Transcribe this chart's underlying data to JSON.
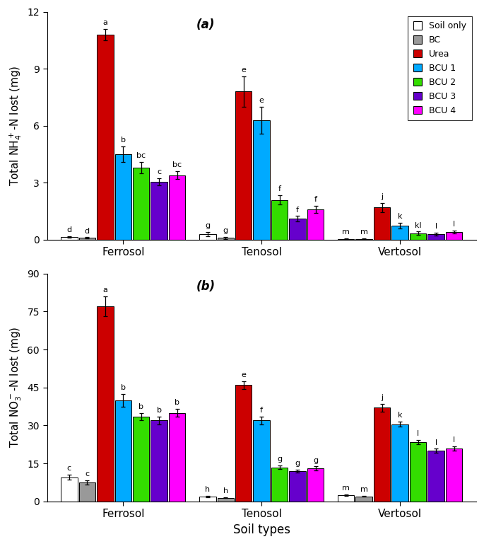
{
  "panel_a": {
    "title": "(a)",
    "ylabel": "Total NH$_4^+$-N lost (mg)",
    "ylim": [
      0,
      12
    ],
    "yticks": [
      0,
      3,
      6,
      9,
      12
    ],
    "groups": [
      "Ferrosol",
      "Tenosol",
      "Vertosol"
    ],
    "treatments": [
      "Soil only",
      "BC",
      "Urea",
      "BCU 1",
      "BCU 2",
      "BCU 3",
      "BCU 4"
    ],
    "values": {
      "Ferrosol": [
        0.15,
        0.1,
        10.8,
        4.5,
        3.8,
        3.05,
        3.4
      ],
      "Tenosol": [
        0.3,
        0.1,
        7.8,
        6.3,
        2.1,
        1.1,
        1.6
      ],
      "Vertosol": [
        0.05,
        0.05,
        1.7,
        0.75,
        0.35,
        0.3,
        0.4
      ]
    },
    "errors": {
      "Ferrosol": [
        0.05,
        0.03,
        0.3,
        0.4,
        0.3,
        0.2,
        0.2
      ],
      "Tenosol": [
        0.1,
        0.05,
        0.8,
        0.7,
        0.25,
        0.15,
        0.2
      ],
      "Vertosol": [
        0.02,
        0.02,
        0.25,
        0.15,
        0.08,
        0.07,
        0.08
      ]
    },
    "letters": {
      "Ferrosol": [
        "d",
        "d",
        "a",
        "b",
        "bc",
        "c",
        "bc"
      ],
      "Tenosol": [
        "g",
        "g",
        "e",
        "e",
        "f",
        "f",
        "f"
      ],
      "Vertosol": [
        "m",
        "m",
        "j",
        "k",
        "kl",
        "l",
        "l"
      ]
    }
  },
  "panel_b": {
    "title": "(b)",
    "ylabel": "Total NO$_3^-$-N lost (mg)",
    "ylim": [
      0,
      90
    ],
    "yticks": [
      0,
      15,
      30,
      45,
      60,
      75,
      90
    ],
    "groups": [
      "Ferrosol",
      "Tenosol",
      "Vertosol"
    ],
    "treatments": [
      "Soil only",
      "BC",
      "Urea",
      "BCU 1",
      "BCU 2",
      "BCU 3",
      "BCU 4"
    ],
    "values": {
      "Ferrosol": [
        9.5,
        7.5,
        77.0,
        40.0,
        33.5,
        32.0,
        35.0
      ],
      "Tenosol": [
        2.0,
        1.5,
        46.0,
        32.0,
        13.5,
        12.0,
        13.0
      ],
      "Vertosol": [
        2.5,
        2.0,
        37.0,
        30.5,
        23.5,
        20.0,
        21.0
      ]
    },
    "errors": {
      "Ferrosol": [
        1.0,
        0.8,
        4.0,
        2.5,
        1.5,
        1.5,
        1.5
      ],
      "Tenosol": [
        0.3,
        0.2,
        1.5,
        1.5,
        0.8,
        0.5,
        0.8
      ],
      "Vertosol": [
        0.3,
        0.2,
        1.5,
        1.0,
        0.8,
        0.8,
        0.8
      ]
    },
    "letters": {
      "Ferrosol": [
        "c",
        "c",
        "a",
        "b",
        "b",
        "b",
        "b"
      ],
      "Tenosol": [
        "h",
        "h",
        "e",
        "f",
        "g",
        "g",
        "g"
      ],
      "Vertosol": [
        "m",
        "m",
        "j",
        "k",
        "l",
        "l",
        "l"
      ]
    }
  },
  "colors": [
    "#ffffff",
    "#999999",
    "#cc0000",
    "#00aaff",
    "#33dd00",
    "#6600cc",
    "#ff00ff"
  ],
  "edge_colors": [
    "#000000",
    "#000000",
    "#000000",
    "#000000",
    "#000000",
    "#000000",
    "#000000"
  ],
  "legend_labels": [
    "Soil only",
    "BC",
    "Urea",
    "BCU 1",
    "BCU 2",
    "BCU 3",
    "BCU 4"
  ],
  "xlabel": "Soil types",
  "bar_width": 0.13,
  "group_centers": [
    0.45,
    1.45,
    2.45
  ]
}
